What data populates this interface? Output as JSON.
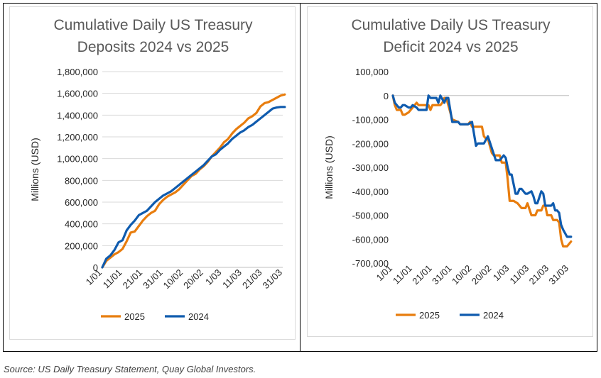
{
  "colors": {
    "series_2025": "#E87D0E",
    "series_2024": "#0F5BAE",
    "gridline": "#d9d9d9"
  },
  "source": "Source:  US Daily Treasury Statement, Quay Global Investors.",
  "chart_data": [
    {
      "type": "line",
      "title_lines": [
        "Cumulative Daily US Treasury",
        "Deposits 2024 vs 2025"
      ],
      "ylabel": "Millions (USD)",
      "ylim": [
        0,
        1800000
      ],
      "yticks": [
        0,
        200000,
        400000,
        600000,
        800000,
        1000000,
        1200000,
        1400000,
        1600000,
        1800000
      ],
      "ytick_labels": [
        "0",
        "200,000",
        "400,000",
        "600,000",
        "800,000",
        "1,000,000",
        "1,200,000",
        "1,400,000",
        "1,600,000",
        "1,800,000"
      ],
      "xlim": [
        0,
        89
      ],
      "xticks": [
        0,
        10,
        20,
        30,
        40,
        50,
        60,
        70,
        80
      ],
      "xtick_labels": [
        "1/01",
        "11/01",
        "21/01",
        "31/01",
        "10/02",
        "20/02",
        "1/03",
        "11/03",
        "21/03",
        "31/03"
      ],
      "xtick_positions": [
        0,
        10,
        20,
        30,
        40,
        50,
        59,
        69,
        79,
        89
      ],
      "grid": true,
      "legend": "bottom-center",
      "series": [
        {
          "name": "2025",
          "x": [
            0,
            2,
            4,
            6,
            8,
            10,
            12,
            14,
            16,
            18,
            20,
            22,
            24,
            26,
            28,
            30,
            32,
            34,
            36,
            38,
            40,
            42,
            44,
            46,
            48,
            50,
            52,
            54,
            56,
            58,
            60,
            62,
            64,
            66,
            68,
            70,
            72,
            74,
            76,
            78,
            80,
            82,
            84,
            86,
            88,
            90
          ],
          "values": [
            0,
            60000,
            90000,
            120000,
            140000,
            170000,
            240000,
            320000,
            330000,
            380000,
            430000,
            470000,
            500000,
            520000,
            580000,
            620000,
            650000,
            670000,
            690000,
            720000,
            760000,
            800000,
            840000,
            860000,
            900000,
            930000,
            970000,
            1020000,
            1060000,
            1100000,
            1150000,
            1180000,
            1230000,
            1270000,
            1300000,
            1330000,
            1370000,
            1390000,
            1420000,
            1480000,
            1510000,
            1520000,
            1540000,
            1560000,
            1580000,
            1590000
          ]
        },
        {
          "name": "2024",
          "x": [
            0,
            2,
            4,
            6,
            8,
            10,
            12,
            14,
            16,
            18,
            20,
            22,
            24,
            26,
            28,
            30,
            32,
            34,
            36,
            38,
            40,
            42,
            44,
            46,
            48,
            50,
            52,
            54,
            56,
            58,
            60,
            62,
            64,
            66,
            68,
            70,
            72,
            74,
            76,
            78,
            80,
            82,
            84,
            86,
            88,
            90
          ],
          "values": [
            0,
            80000,
            110000,
            160000,
            230000,
            250000,
            340000,
            390000,
            430000,
            480000,
            500000,
            520000,
            560000,
            600000,
            630000,
            660000,
            680000,
            700000,
            730000,
            760000,
            790000,
            820000,
            850000,
            880000,
            910000,
            940000,
            980000,
            1020000,
            1040000,
            1080000,
            1110000,
            1140000,
            1180000,
            1210000,
            1240000,
            1260000,
            1290000,
            1310000,
            1340000,
            1370000,
            1400000,
            1430000,
            1460000,
            1470000,
            1475000,
            1475000
          ]
        }
      ]
    },
    {
      "type": "line",
      "title_lines": [
        "Cumulative Daily US Treasury",
        "Deficit 2024 vs 2025"
      ],
      "ylabel": "Millions (USD)",
      "ylim": [
        -700000,
        100000
      ],
      "yticks": [
        -700000,
        -600000,
        -500000,
        -400000,
        -300000,
        -200000,
        -100000,
        0,
        100000
      ],
      "ytick_labels": [
        "-700,000",
        "-600,000",
        "-500,000",
        "-400,000",
        "-300,000",
        "-200,000",
        "-100,000",
        "0",
        "100,000"
      ],
      "xlim": [
        0,
        89
      ],
      "xticks": [
        0,
        10,
        20,
        30,
        40,
        50,
        60,
        70,
        80
      ],
      "xtick_labels": [
        "1/01",
        "11/01",
        "21/01",
        "31/01",
        "10/02",
        "20/02",
        "1/03",
        "11/03",
        "21/03",
        "31/03"
      ],
      "xtick_positions": [
        0,
        10,
        20,
        30,
        40,
        50,
        59,
        69,
        79,
        89
      ],
      "grid": false,
      "legend": "bottom-center",
      "series": [
        {
          "name": "2025",
          "x": [
            0,
            1,
            2,
            4,
            5,
            6,
            8,
            9,
            12,
            13,
            14,
            18,
            19,
            20,
            24,
            25,
            26,
            27,
            30,
            33,
            34,
            35,
            38,
            39,
            40,
            45,
            46,
            47,
            48,
            50,
            51,
            52,
            53,
            54,
            55,
            56,
            57,
            58,
            59,
            60,
            61,
            63,
            64,
            65,
            67,
            68,
            70,
            71,
            72,
            73,
            75,
            76,
            77,
            78,
            80,
            81,
            82,
            83,
            84,
            85,
            86,
            88,
            89,
            90
          ],
          "values": [
            0,
            -40000,
            -60000,
            -60000,
            -80000,
            -80000,
            -70000,
            -60000,
            -30000,
            -40000,
            -40000,
            -40000,
            -60000,
            -40000,
            -40000,
            -30000,
            -10000,
            -10000,
            -100000,
            -110000,
            -120000,
            -120000,
            -120000,
            -110000,
            -130000,
            -130000,
            -170000,
            -180000,
            -180000,
            -240000,
            -250000,
            -250000,
            -250000,
            -250000,
            -280000,
            -280000,
            -280000,
            -350000,
            -440000,
            -440000,
            -440000,
            -450000,
            -460000,
            -470000,
            -470000,
            -450000,
            -500000,
            -500000,
            -500000,
            -480000,
            -480000,
            -460000,
            -460000,
            -500000,
            -500000,
            -520000,
            -520000,
            -520000,
            -530000,
            -600000,
            -630000,
            -630000,
            -620000,
            -610000
          ]
        },
        {
          "name": "2024",
          "x": [
            0,
            1,
            2,
            3,
            4,
            5,
            6,
            8,
            9,
            10,
            12,
            13,
            14,
            15,
            16,
            17,
            18,
            19,
            21,
            22,
            23,
            24,
            26,
            27,
            28,
            30,
            33,
            34,
            36,
            38,
            40,
            42,
            43,
            44,
            46,
            48,
            50,
            52,
            53,
            54,
            55,
            56,
            57,
            58,
            59,
            60,
            62,
            63,
            64,
            65,
            67,
            68,
            70,
            71,
            72,
            73,
            75,
            76,
            77,
            78,
            80,
            81,
            82,
            83,
            84,
            85,
            86,
            88,
            90
          ],
          "values": [
            0,
            -30000,
            -40000,
            -50000,
            -50000,
            -40000,
            -40000,
            -50000,
            -50000,
            -40000,
            -50000,
            -60000,
            -60000,
            -60000,
            -60000,
            -60000,
            0,
            -10000,
            -10000,
            -10000,
            -30000,
            0,
            -30000,
            -10000,
            -10000,
            -110000,
            -110000,
            -120000,
            -120000,
            -120000,
            -110000,
            -210000,
            -200000,
            -200000,
            -200000,
            -170000,
            -220000,
            -270000,
            -270000,
            -270000,
            -260000,
            -250000,
            -260000,
            -300000,
            -330000,
            -330000,
            -410000,
            -410000,
            -390000,
            -390000,
            -410000,
            -410000,
            -400000,
            -420000,
            -450000,
            -450000,
            -400000,
            -410000,
            -460000,
            -460000,
            -460000,
            -450000,
            -480000,
            -480000,
            -490000,
            -540000,
            -560000,
            -590000,
            -590000
          ]
        }
      ]
    }
  ]
}
